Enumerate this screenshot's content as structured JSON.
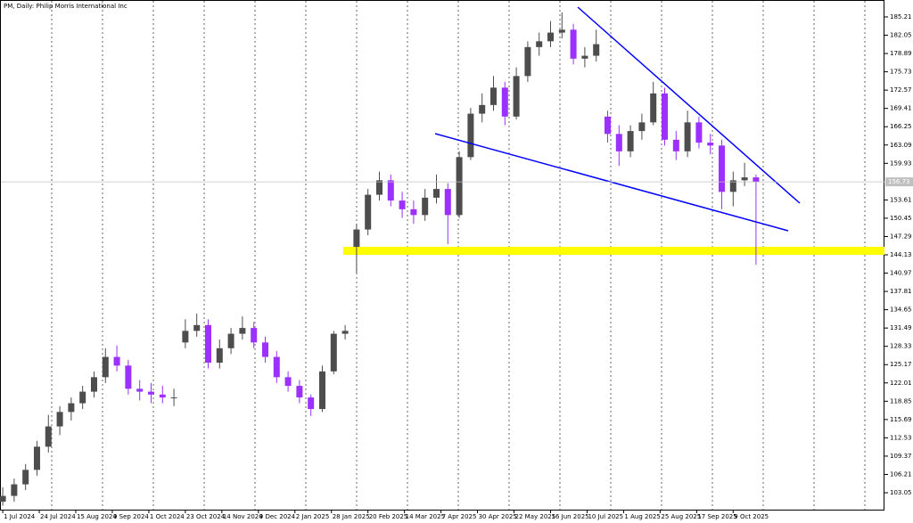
{
  "chart_data": {
    "type": "candlestick",
    "title": "PM, Daily:  Philip Morris International Inc",
    "x": [
      0,
      5,
      10,
      15,
      20,
      25,
      30,
      35,
      40,
      45,
      50,
      55,
      60,
      65,
      70,
      75,
      80,
      85,
      90,
      95,
      100,
      105,
      110,
      115,
      120,
      125,
      130,
      135,
      140,
      145,
      150,
      155,
      160,
      165,
      170,
      175,
      180,
      185,
      190,
      195,
      200,
      205,
      210,
      215,
      220,
      225,
      230,
      235,
      240,
      245,
      250,
      255,
      260,
      265,
      270,
      275,
      280,
      285,
      290,
      295,
      300,
      305,
      310,
      315,
      320,
      325,
      330
    ],
    "open": [
      101.5,
      102.5,
      104.5,
      107,
      111,
      114.5,
      117,
      118.5,
      120.5,
      123,
      126.5,
      125,
      121,
      120.5,
      120,
      119.5,
      129,
      131,
      132,
      125.5,
      128,
      130.5,
      131.5,
      129,
      126.5,
      123,
      121.5,
      119.5,
      117.5,
      124,
      130.5,
      145.5,
      148.5,
      154.5,
      157,
      153.5,
      152,
      151,
      154,
      155.5,
      151,
      161,
      168.5,
      170,
      173,
      168,
      175,
      180,
      181,
      182.5,
      183,
      178,
      178.5,
      168,
      165,
      162,
      165.5,
      167,
      172,
      164,
      162,
      167,
      163.5,
      163,
      155,
      157,
      157.5
    ],
    "high": [
      104,
      105.5,
      108,
      112,
      116.5,
      118,
      119.5,
      121.5,
      124,
      128,
      128.5,
      126,
      122.5,
      122,
      121.5,
      121,
      133,
      134,
      133,
      129.5,
      131.5,
      133.5,
      132.5,
      130,
      127.5,
      124,
      122.5,
      120,
      125,
      131,
      132,
      149.5,
      155.5,
      158.5,
      158,
      155,
      153.5,
      155.5,
      158,
      156.5,
      162,
      169.5,
      172,
      175,
      174,
      176.5,
      181,
      182.5,
      184.5,
      186,
      184,
      180,
      183,
      169,
      166.5,
      166.5,
      168.5,
      174,
      173,
      165.5,
      169,
      168,
      165,
      164,
      158.5,
      160,
      158
    ],
    "low": [
      100.8,
      101.5,
      103.5,
      106,
      110,
      113,
      115.5,
      117.5,
      119.5,
      122,
      124,
      120,
      119,
      118.5,
      118.5,
      118,
      128,
      130,
      124.5,
      124.5,
      127,
      129.5,
      128,
      125.5,
      122,
      120.5,
      118.5,
      116.3,
      117,
      123.5,
      129.5,
      141,
      147.5,
      153.5,
      152.5,
      150.5,
      149.5,
      150,
      153,
      146,
      150.5,
      160.5,
      167,
      169,
      166.5,
      167.5,
      174,
      178.5,
      180,
      181.5,
      177,
      176.5,
      177.5,
      163.5,
      159.5,
      161,
      164,
      166.5,
      163,
      160.5,
      161,
      162.5,
      161.5,
      152,
      152.5,
      156,
      142.4
    ],
    "close": [
      102.5,
      104.5,
      107,
      111,
      114.5,
      117,
      118.5,
      120.5,
      123,
      126.5,
      125,
      121,
      120.5,
      120,
      119.5,
      119.5,
      131,
      132,
      125.5,
      128,
      130.5,
      131.5,
      129,
      126.5,
      123,
      121.5,
      119.5,
      117.5,
      124,
      130.5,
      131,
      148.5,
      154.5,
      157,
      153.5,
      152,
      151,
      154,
      155.5,
      151,
      161,
      168.5,
      170,
      173,
      168,
      175,
      180,
      181,
      182.5,
      183,
      178,
      178.5,
      180.5,
      165,
      162,
      165.5,
      167,
      172,
      164,
      162,
      167,
      163.5,
      163,
      155,
      157,
      157.5,
      156.73
    ],
    "up_color": "#4d4d4d",
    "down_color": "#9b30ff",
    "last_price": 156.73,
    "xlim": [
      -1.2,
      385.5
    ],
    "ylim": [
      100.13,
      188.13
    ],
    "xticks": [
      {
        "value": 0,
        "label": "1 Jul 2024"
      },
      {
        "value": 16,
        "label": "24 Jul 2024"
      },
      {
        "value": 32,
        "label": "15 Aug 2024"
      },
      {
        "value": 48,
        "label": "9 Sep 2024"
      },
      {
        "value": 64,
        "label": "1 Oct 2024"
      },
      {
        "value": 80,
        "label": "23 Oct 2024"
      },
      {
        "value": 96,
        "label": "14 Nov 2024"
      },
      {
        "value": 112,
        "label": "9 Dec 2024"
      },
      {
        "value": 128,
        "label": "2 Jan 2025"
      },
      {
        "value": 144,
        "label": "28 Jan 2025"
      },
      {
        "value": 160,
        "label": "20 Feb 2025"
      },
      {
        "value": 176,
        "label": "14 Mar 2025"
      },
      {
        "value": 192,
        "label": "7 Apr 2025"
      },
      {
        "value": 208,
        "label": "30 Apr 2025"
      },
      {
        "value": 224,
        "label": "22 May 2025"
      },
      {
        "value": 240,
        "label": "16 Jun 2025"
      },
      {
        "value": 256,
        "label": "10 Jul 2025"
      },
      {
        "value": 272,
        "label": "1 Aug 2025"
      },
      {
        "value": 288,
        "label": "25 Aug 2025"
      },
      {
        "value": 304,
        "label": "17 Sep 2025"
      },
      {
        "value": 320,
        "label": "9 Oct 2025"
      }
    ],
    "yticks": [
      185.21,
      182.05,
      178.89,
      175.73,
      172.57,
      169.41,
      166.25,
      163.09,
      159.93,
      153.61,
      150.45,
      147.29,
      144.13,
      140.97,
      137.81,
      134.65,
      131.49,
      128.33,
      125.17,
      122.01,
      118.85,
      115.69,
      112.53,
      109.37,
      106.21,
      103.05
    ]
  }
}
